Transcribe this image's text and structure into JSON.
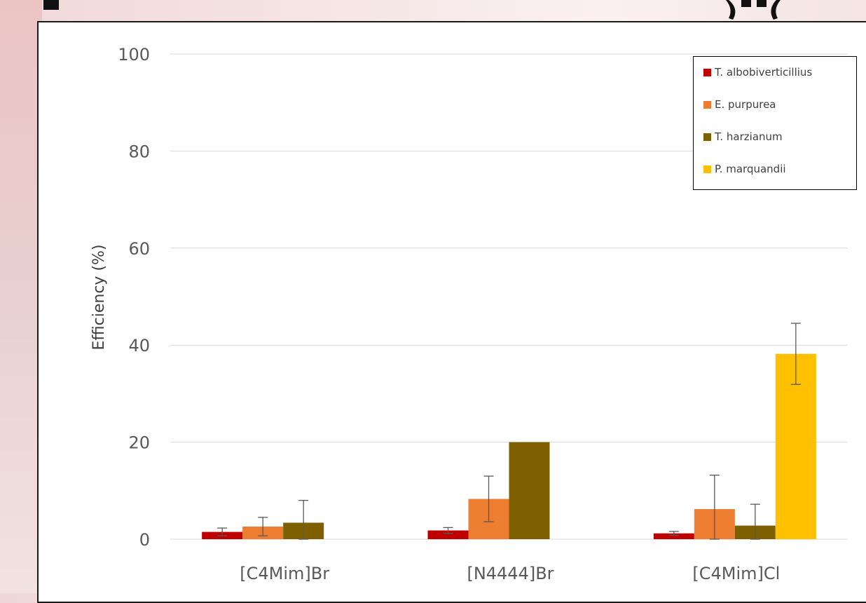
{
  "chart_data": {
    "type": "bar",
    "title": "",
    "xlabel": "",
    "ylabel": "Efficiency (%)",
    "ylim": [
      0,
      100
    ],
    "yticks": [
      "0",
      "20",
      "40",
      "60",
      "80",
      "100"
    ],
    "grid": true,
    "legend_position": "top-right",
    "categories": [
      "[C4Mim]Br",
      "[N4444]Br",
      "[C4Mim]Cl"
    ],
    "series": [
      {
        "name": "T. albobiverticillius",
        "color": "#c00000",
        "values": [
          1.5,
          1.8,
          1.2
        ],
        "errors": [
          0.8,
          0.6,
          0.4
        ]
      },
      {
        "name": "E. purpurea",
        "color": "#ed7d31",
        "values": [
          2.6,
          8.3,
          6.2
        ],
        "errors": [
          1.9,
          4.7,
          7.0
        ]
      },
      {
        "name": "T. harzianum",
        "color": "#7f6000",
        "values": [
          3.4,
          20.0,
          2.8
        ],
        "errors": [
          4.6,
          0,
          4.4
        ]
      },
      {
        "name": "P. marquandii",
        "color": "#ffc000",
        "values": [
          null,
          null,
          38.2
        ],
        "errors": [
          0,
          0,
          6.3
        ]
      }
    ]
  }
}
